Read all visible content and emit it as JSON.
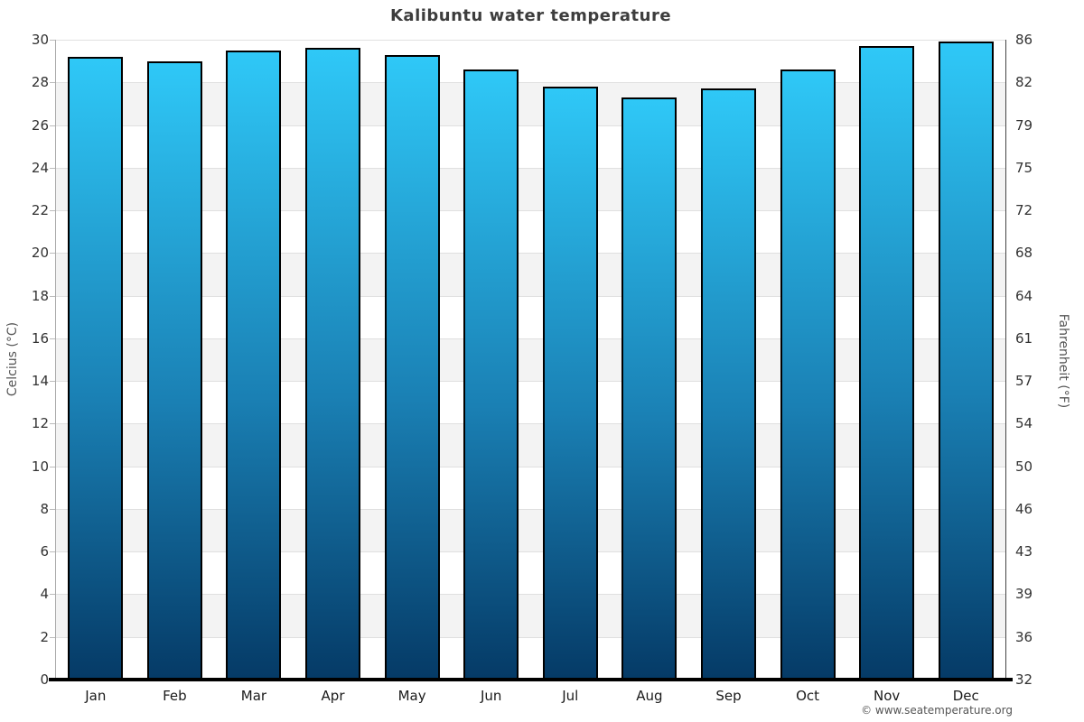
{
  "title": "Kalibuntu water temperature",
  "attribution": "© www.seatemperature.org",
  "chart_data": {
    "type": "bar",
    "title": "Kalibuntu water temperature",
    "categories": [
      "Jan",
      "Feb",
      "Mar",
      "Apr",
      "May",
      "Jun",
      "Jul",
      "Aug",
      "Sep",
      "Oct",
      "Nov",
      "Dec"
    ],
    "values": [
      29.2,
      29.0,
      29.5,
      29.6,
      29.3,
      28.6,
      27.8,
      27.3,
      27.7,
      28.6,
      29.7,
      29.9
    ],
    "unit": "°C",
    "xlabel": "",
    "ylabel_left": "Celcius (°C)",
    "ylabel_right": "Fahrenheit (°F)",
    "ylim": [
      0,
      30
    ],
    "y_ticks_celsius": [
      30,
      28,
      26,
      24,
      22,
      20,
      18,
      16,
      14,
      12,
      10,
      8,
      6,
      4,
      2,
      0
    ],
    "y_ticks_fahrenheit": [
      "86",
      "82",
      "79",
      "75",
      "72",
      "68",
      "64",
      "61",
      "57",
      "54",
      "50",
      "46",
      "43",
      "39",
      "36",
      "32"
    ],
    "grid": "horizontal gridlines every 2°C with alternating white/gray background bands",
    "legend": "none",
    "colors": {
      "bar_gradient_top": "#2fc8f7",
      "bar_gradient_mid": "#1a80b4",
      "bar_gradient_bottom": "#053a66",
      "bar_border": "#000000",
      "band_gray": "#f3f3f3",
      "gridline": "#e0e0e0",
      "title_text": "#3d3d3d",
      "tick_text": "#333333",
      "axis_title_text": "#555555",
      "attribution_text": "#555555"
    }
  }
}
